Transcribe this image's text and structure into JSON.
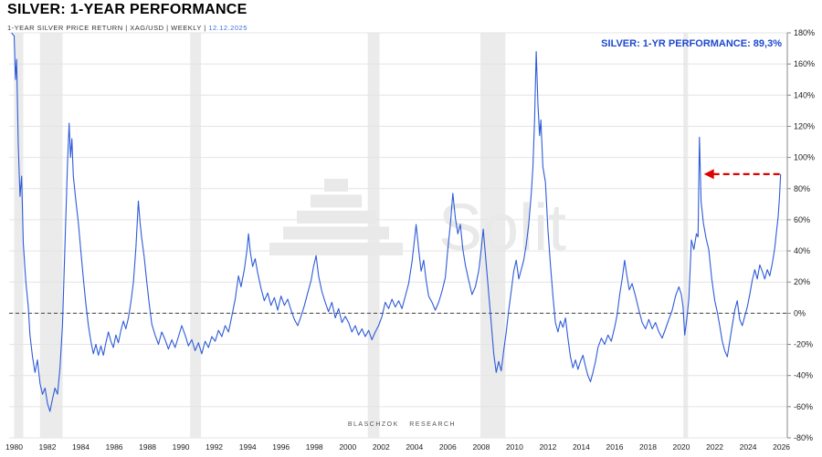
{
  "header": {
    "title": "SILVER: 1-YEAR PERFORMANCE",
    "subtitle": "1-YEAR SILVER PRICE RETURN | XAG/USD | WEEKLY |",
    "subtitle_date": "12.12.2025",
    "date_color": "#3a6fd8"
  },
  "annotation": {
    "label": "SILVER: 1-YR PERFORMANCE: 89,3%",
    "color": "#1d49cf"
  },
  "footer": {
    "credit": "BLASCHZOK RESEARCH"
  },
  "watermark": {
    "text": "Solit",
    "color": "#e9e9e9"
  },
  "chart_data": {
    "type": "line",
    "title": "SILVER: 1-YEAR PERFORMANCE",
    "xlabel": "",
    "ylabel": "",
    "xlim": [
      1979.7,
      2026.35
    ],
    "ylim": [
      -80,
      180
    ],
    "x_ticks": [
      1980,
      1982,
      1984,
      1986,
      1988,
      1990,
      1992,
      1994,
      1996,
      1998,
      2000,
      2002,
      2004,
      2006,
      2008,
      2010,
      2012,
      2014,
      2016,
      2018,
      2020,
      2022,
      2024,
      2026
    ],
    "y_ticks": [
      180,
      160,
      140,
      120,
      100,
      80,
      60,
      40,
      20,
      0,
      -20,
      -40,
      -60,
      -80
    ],
    "line_color": "#2e5bd8",
    "grid_color": "#e4e4e4",
    "band_color": "#ebebeb",
    "zero_line_color": "#444444",
    "axis_color": "#888888",
    "tick_text_color": "#222222",
    "arrow": {
      "y": 89.3,
      "x_from": 2021.35,
      "x_to": 2025.9,
      "color": "#e00000"
    },
    "current_value_pct": 89.3,
    "recession_bands": [
      [
        1980.0,
        1980.55
      ],
      [
        1981.55,
        1982.9
      ],
      [
        1990.55,
        1991.2
      ],
      [
        2001.2,
        2001.9
      ],
      [
        2007.95,
        2009.45
      ],
      [
        2020.12,
        2020.4
      ]
    ],
    "points": [
      [
        1979.85,
        180
      ],
      [
        1980.0,
        178
      ],
      [
        1980.08,
        150
      ],
      [
        1980.15,
        163
      ],
      [
        1980.25,
        108
      ],
      [
        1980.35,
        75
      ],
      [
        1980.45,
        88
      ],
      [
        1980.55,
        45
      ],
      [
        1980.7,
        20
      ],
      [
        1980.85,
        4
      ],
      [
        1980.95,
        -14
      ],
      [
        1981.1,
        -28
      ],
      [
        1981.25,
        -38
      ],
      [
        1981.4,
        -30
      ],
      [
        1981.55,
        -45
      ],
      [
        1981.7,
        -52
      ],
      [
        1981.85,
        -48
      ],
      [
        1982.0,
        -58
      ],
      [
        1982.15,
        -63
      ],
      [
        1982.3,
        -55
      ],
      [
        1982.45,
        -48
      ],
      [
        1982.6,
        -52
      ],
      [
        1982.75,
        -35
      ],
      [
        1982.9,
        -8
      ],
      [
        1983.0,
        28
      ],
      [
        1983.1,
        62
      ],
      [
        1983.2,
        96
      ],
      [
        1983.3,
        122
      ],
      [
        1983.38,
        100
      ],
      [
        1983.46,
        112
      ],
      [
        1983.55,
        88
      ],
      [
        1983.7,
        72
      ],
      [
        1983.85,
        58
      ],
      [
        1984.0,
        40
      ],
      [
        1984.15,
        22
      ],
      [
        1984.3,
        6
      ],
      [
        1984.45,
        -8
      ],
      [
        1984.6,
        -18
      ],
      [
        1984.75,
        -26
      ],
      [
        1984.9,
        -20
      ],
      [
        1985.05,
        -27
      ],
      [
        1985.2,
        -21
      ],
      [
        1985.35,
        -27
      ],
      [
        1985.5,
        -19
      ],
      [
        1985.65,
        -12
      ],
      [
        1985.8,
        -18
      ],
      [
        1985.95,
        -22
      ],
      [
        1986.1,
        -14
      ],
      [
        1986.25,
        -19
      ],
      [
        1986.4,
        -11
      ],
      [
        1986.55,
        -5
      ],
      [
        1986.7,
        -10
      ],
      [
        1986.85,
        -3
      ],
      [
        1987.0,
        7
      ],
      [
        1987.15,
        20
      ],
      [
        1987.3,
        42
      ],
      [
        1987.45,
        72
      ],
      [
        1987.55,
        58
      ],
      [
        1987.65,
        48
      ],
      [
        1987.8,
        36
      ],
      [
        1987.95,
        20
      ],
      [
        1988.1,
        6
      ],
      [
        1988.25,
        -7
      ],
      [
        1988.45,
        -14
      ],
      [
        1988.65,
        -20
      ],
      [
        1988.85,
        -12
      ],
      [
        1989.05,
        -17
      ],
      [
        1989.25,
        -23
      ],
      [
        1989.45,
        -17
      ],
      [
        1989.65,
        -22
      ],
      [
        1989.85,
        -15
      ],
      [
        1990.05,
        -8
      ],
      [
        1990.25,
        -14
      ],
      [
        1990.45,
        -21
      ],
      [
        1990.65,
        -17
      ],
      [
        1990.85,
        -24
      ],
      [
        1991.05,
        -19
      ],
      [
        1991.25,
        -26
      ],
      [
        1991.45,
        -18
      ],
      [
        1991.65,
        -22
      ],
      [
        1991.85,
        -15
      ],
      [
        1992.05,
        -18
      ],
      [
        1992.25,
        -11
      ],
      [
        1992.45,
        -15
      ],
      [
        1992.65,
        -8
      ],
      [
        1992.85,
        -12
      ],
      [
        1993.05,
        -2
      ],
      [
        1993.25,
        9
      ],
      [
        1993.45,
        24
      ],
      [
        1993.6,
        17
      ],
      [
        1993.8,
        28
      ],
      [
        1993.95,
        40
      ],
      [
        1994.05,
        51
      ],
      [
        1994.15,
        40
      ],
      [
        1994.3,
        30
      ],
      [
        1994.45,
        35
      ],
      [
        1994.6,
        26
      ],
      [
        1994.8,
        16
      ],
      [
        1995.0,
        8
      ],
      [
        1995.2,
        13
      ],
      [
        1995.4,
        5
      ],
      [
        1995.6,
        10
      ],
      [
        1995.8,
        2
      ],
      [
        1996.0,
        11
      ],
      [
        1996.2,
        5
      ],
      [
        1996.4,
        9
      ],
      [
        1996.6,
        2
      ],
      [
        1996.8,
        -4
      ],
      [
        1997.0,
        -8
      ],
      [
        1997.2,
        -2
      ],
      [
        1997.4,
        5
      ],
      [
        1997.6,
        13
      ],
      [
        1997.8,
        21
      ],
      [
        1997.95,
        30
      ],
      [
        1998.1,
        37
      ],
      [
        1998.25,
        24
      ],
      [
        1998.45,
        14
      ],
      [
        1998.65,
        7
      ],
      [
        1998.85,
        1
      ],
      [
        1999.05,
        7
      ],
      [
        1999.25,
        -3
      ],
      [
        1999.45,
        3
      ],
      [
        1999.65,
        -6
      ],
      [
        1999.85,
        -2
      ],
      [
        2000.05,
        -6
      ],
      [
        2000.25,
        -12
      ],
      [
        2000.45,
        -8
      ],
      [
        2000.65,
        -14
      ],
      [
        2000.85,
        -10
      ],
      [
        2001.05,
        -15
      ],
      [
        2001.25,
        -11
      ],
      [
        2001.45,
        -17
      ],
      [
        2001.65,
        -12
      ],
      [
        2001.85,
        -8
      ],
      [
        2002.05,
        -2
      ],
      [
        2002.25,
        7
      ],
      [
        2002.45,
        3
      ],
      [
        2002.65,
        9
      ],
      [
        2002.85,
        4
      ],
      [
        2003.05,
        8
      ],
      [
        2003.25,
        3
      ],
      [
        2003.45,
        11
      ],
      [
        2003.65,
        19
      ],
      [
        2003.85,
        33
      ],
      [
        2004.0,
        47
      ],
      [
        2004.1,
        57
      ],
      [
        2004.25,
        41
      ],
      [
        2004.4,
        27
      ],
      [
        2004.55,
        34
      ],
      [
        2004.7,
        21
      ],
      [
        2004.85,
        11
      ],
      [
        2005.05,
        7
      ],
      [
        2005.25,
        2
      ],
      [
        2005.45,
        7
      ],
      [
        2005.65,
        14
      ],
      [
        2005.85,
        23
      ],
      [
        2006.0,
        41
      ],
      [
        2006.15,
        57
      ],
      [
        2006.3,
        77
      ],
      [
        2006.45,
        61
      ],
      [
        2006.6,
        51
      ],
      [
        2006.75,
        57
      ],
      [
        2006.9,
        41
      ],
      [
        2007.05,
        31
      ],
      [
        2007.25,
        21
      ],
      [
        2007.45,
        12
      ],
      [
        2007.65,
        17
      ],
      [
        2007.85,
        27
      ],
      [
        2008.0,
        41
      ],
      [
        2008.12,
        54
      ],
      [
        2008.28,
        34
      ],
      [
        2008.44,
        14
      ],
      [
        2008.6,
        -6
      ],
      [
        2008.75,
        -26
      ],
      [
        2008.9,
        -38
      ],
      [
        2009.05,
        -31
      ],
      [
        2009.2,
        -37
      ],
      [
        2009.35,
        -24
      ],
      [
        2009.5,
        -12
      ],
      [
        2009.65,
        2
      ],
      [
        2009.8,
        14
      ],
      [
        2009.95,
        27
      ],
      [
        2010.1,
        34
      ],
      [
        2010.25,
        22
      ],
      [
        2010.4,
        28
      ],
      [
        2010.55,
        34
      ],
      [
        2010.7,
        44
      ],
      [
        2010.85,
        57
      ],
      [
        2011.0,
        77
      ],
      [
        2011.1,
        94
      ],
      [
        2011.2,
        124
      ],
      [
        2011.3,
        168
      ],
      [
        2011.4,
        134
      ],
      [
        2011.5,
        114
      ],
      [
        2011.58,
        124
      ],
      [
        2011.7,
        94
      ],
      [
        2011.85,
        84
      ],
      [
        2012.0,
        54
      ],
      [
        2012.15,
        31
      ],
      [
        2012.3,
        11
      ],
      [
        2012.45,
        -6
      ],
      [
        2012.6,
        -12
      ],
      [
        2012.75,
        -5
      ],
      [
        2012.9,
        -9
      ],
      [
        2013.05,
        -3
      ],
      [
        2013.2,
        -16
      ],
      [
        2013.35,
        -28
      ],
      [
        2013.5,
        -35
      ],
      [
        2013.65,
        -30
      ],
      [
        2013.8,
        -36
      ],
      [
        2013.95,
        -31
      ],
      [
        2014.1,
        -27
      ],
      [
        2014.25,
        -34
      ],
      [
        2014.4,
        -40
      ],
      [
        2014.55,
        -44
      ],
      [
        2014.7,
        -38
      ],
      [
        2014.85,
        -31
      ],
      [
        2015.0,
        -22
      ],
      [
        2015.2,
        -16
      ],
      [
        2015.4,
        -20
      ],
      [
        2015.6,
        -14
      ],
      [
        2015.8,
        -18
      ],
      [
        2016.0,
        -9
      ],
      [
        2016.15,
        -1
      ],
      [
        2016.3,
        12
      ],
      [
        2016.45,
        22
      ],
      [
        2016.6,
        34
      ],
      [
        2016.72,
        25
      ],
      [
        2016.88,
        15
      ],
      [
        2017.05,
        19
      ],
      [
        2017.25,
        11
      ],
      [
        2017.45,
        2
      ],
      [
        2017.65,
        -6
      ],
      [
        2017.85,
        -10
      ],
      [
        2018.05,
        -4
      ],
      [
        2018.25,
        -10
      ],
      [
        2018.45,
        -6
      ],
      [
        2018.65,
        -12
      ],
      [
        2018.85,
        -16
      ],
      [
        2019.05,
        -10
      ],
      [
        2019.25,
        -4
      ],
      [
        2019.45,
        2
      ],
      [
        2019.65,
        11
      ],
      [
        2019.85,
        17
      ],
      [
        2020.0,
        12
      ],
      [
        2020.1,
        4
      ],
      [
        2020.2,
        -14
      ],
      [
        2020.32,
        -4
      ],
      [
        2020.45,
        9
      ],
      [
        2020.6,
        47
      ],
      [
        2020.75,
        41
      ],
      [
        2020.9,
        51
      ],
      [
        2021.0,
        49
      ],
      [
        2021.08,
        113
      ],
      [
        2021.18,
        72
      ],
      [
        2021.32,
        58
      ],
      [
        2021.48,
        48
      ],
      [
        2021.64,
        41
      ],
      [
        2021.82,
        22
      ],
      [
        2022.0,
        8
      ],
      [
        2022.15,
        1
      ],
      [
        2022.3,
        -8
      ],
      [
        2022.45,
        -18
      ],
      [
        2022.6,
        -24
      ],
      [
        2022.75,
        -28
      ],
      [
        2022.9,
        -18
      ],
      [
        2023.05,
        -8
      ],
      [
        2023.2,
        2
      ],
      [
        2023.35,
        8
      ],
      [
        2023.5,
        -4
      ],
      [
        2023.65,
        -8
      ],
      [
        2023.8,
        -2
      ],
      [
        2023.95,
        4
      ],
      [
        2024.1,
        12
      ],
      [
        2024.25,
        21
      ],
      [
        2024.4,
        28
      ],
      [
        2024.55,
        22
      ],
      [
        2024.7,
        31
      ],
      [
        2024.85,
        27
      ],
      [
        2025.0,
        22
      ],
      [
        2025.15,
        28
      ],
      [
        2025.3,
        24
      ],
      [
        2025.45,
        32
      ],
      [
        2025.6,
        42
      ],
      [
        2025.7,
        52
      ],
      [
        2025.8,
        62
      ],
      [
        2025.88,
        74
      ],
      [
        2025.95,
        89.3
      ]
    ]
  }
}
